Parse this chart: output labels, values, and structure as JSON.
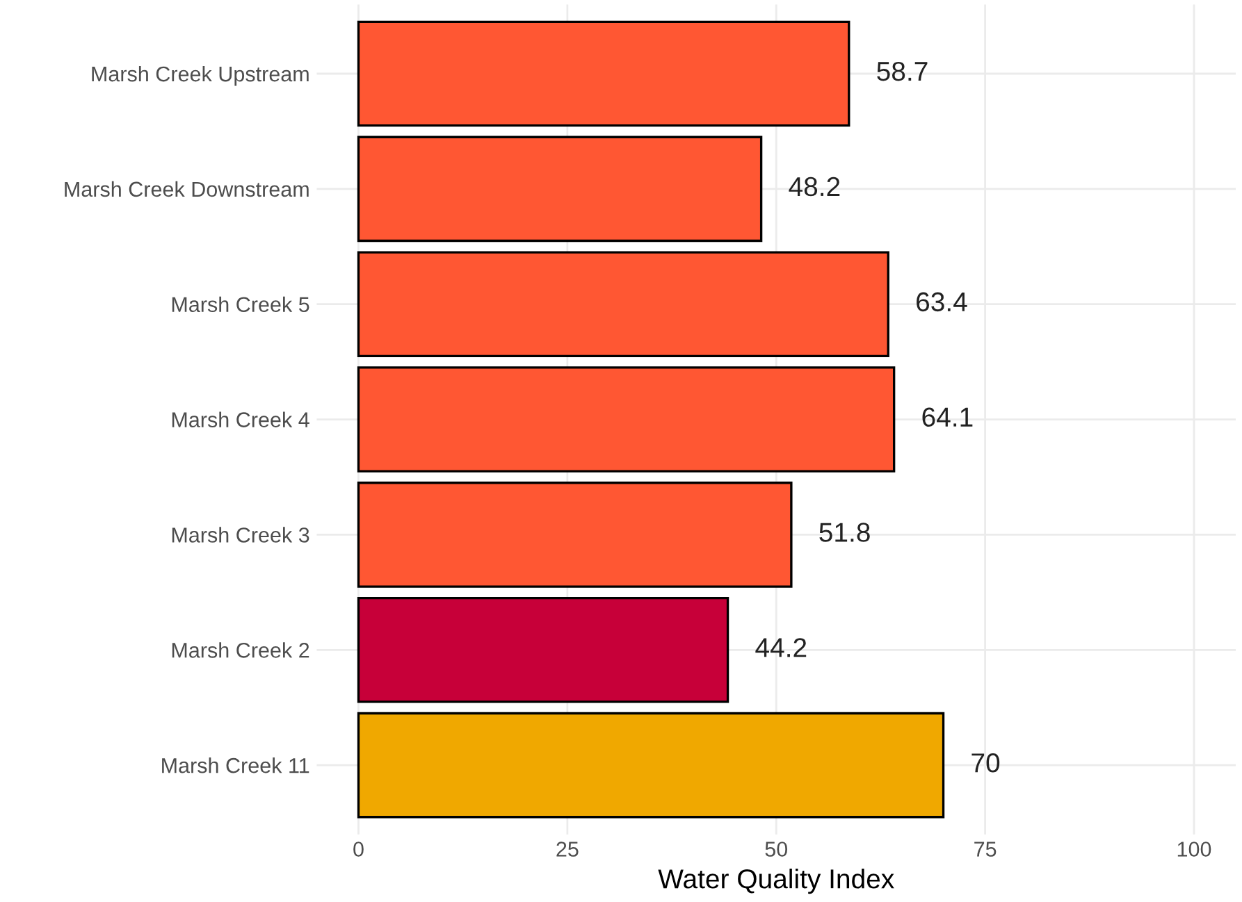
{
  "chart_data": {
    "type": "bar",
    "orientation": "horizontal",
    "xlabel": "Water Quality Index",
    "categories": [
      "Marsh Creek Upstream",
      "Marsh Creek Downstream",
      "Marsh Creek 5",
      "Marsh Creek 4",
      "Marsh Creek 3",
      "Marsh Creek 2",
      "Marsh Creek 11"
    ],
    "values": [
      58.7,
      48.2,
      63.4,
      64.1,
      51.8,
      44.2,
      70
    ],
    "colors": [
      "#ff5733",
      "#ff5733",
      "#ff5733",
      "#ff5733",
      "#ff5733",
      "#c70039",
      "#f0a800"
    ],
    "xlim": [
      -5,
      105
    ],
    "xticks": [
      0,
      25,
      50,
      75,
      100
    ],
    "grid": true,
    "data_labels": true
  }
}
